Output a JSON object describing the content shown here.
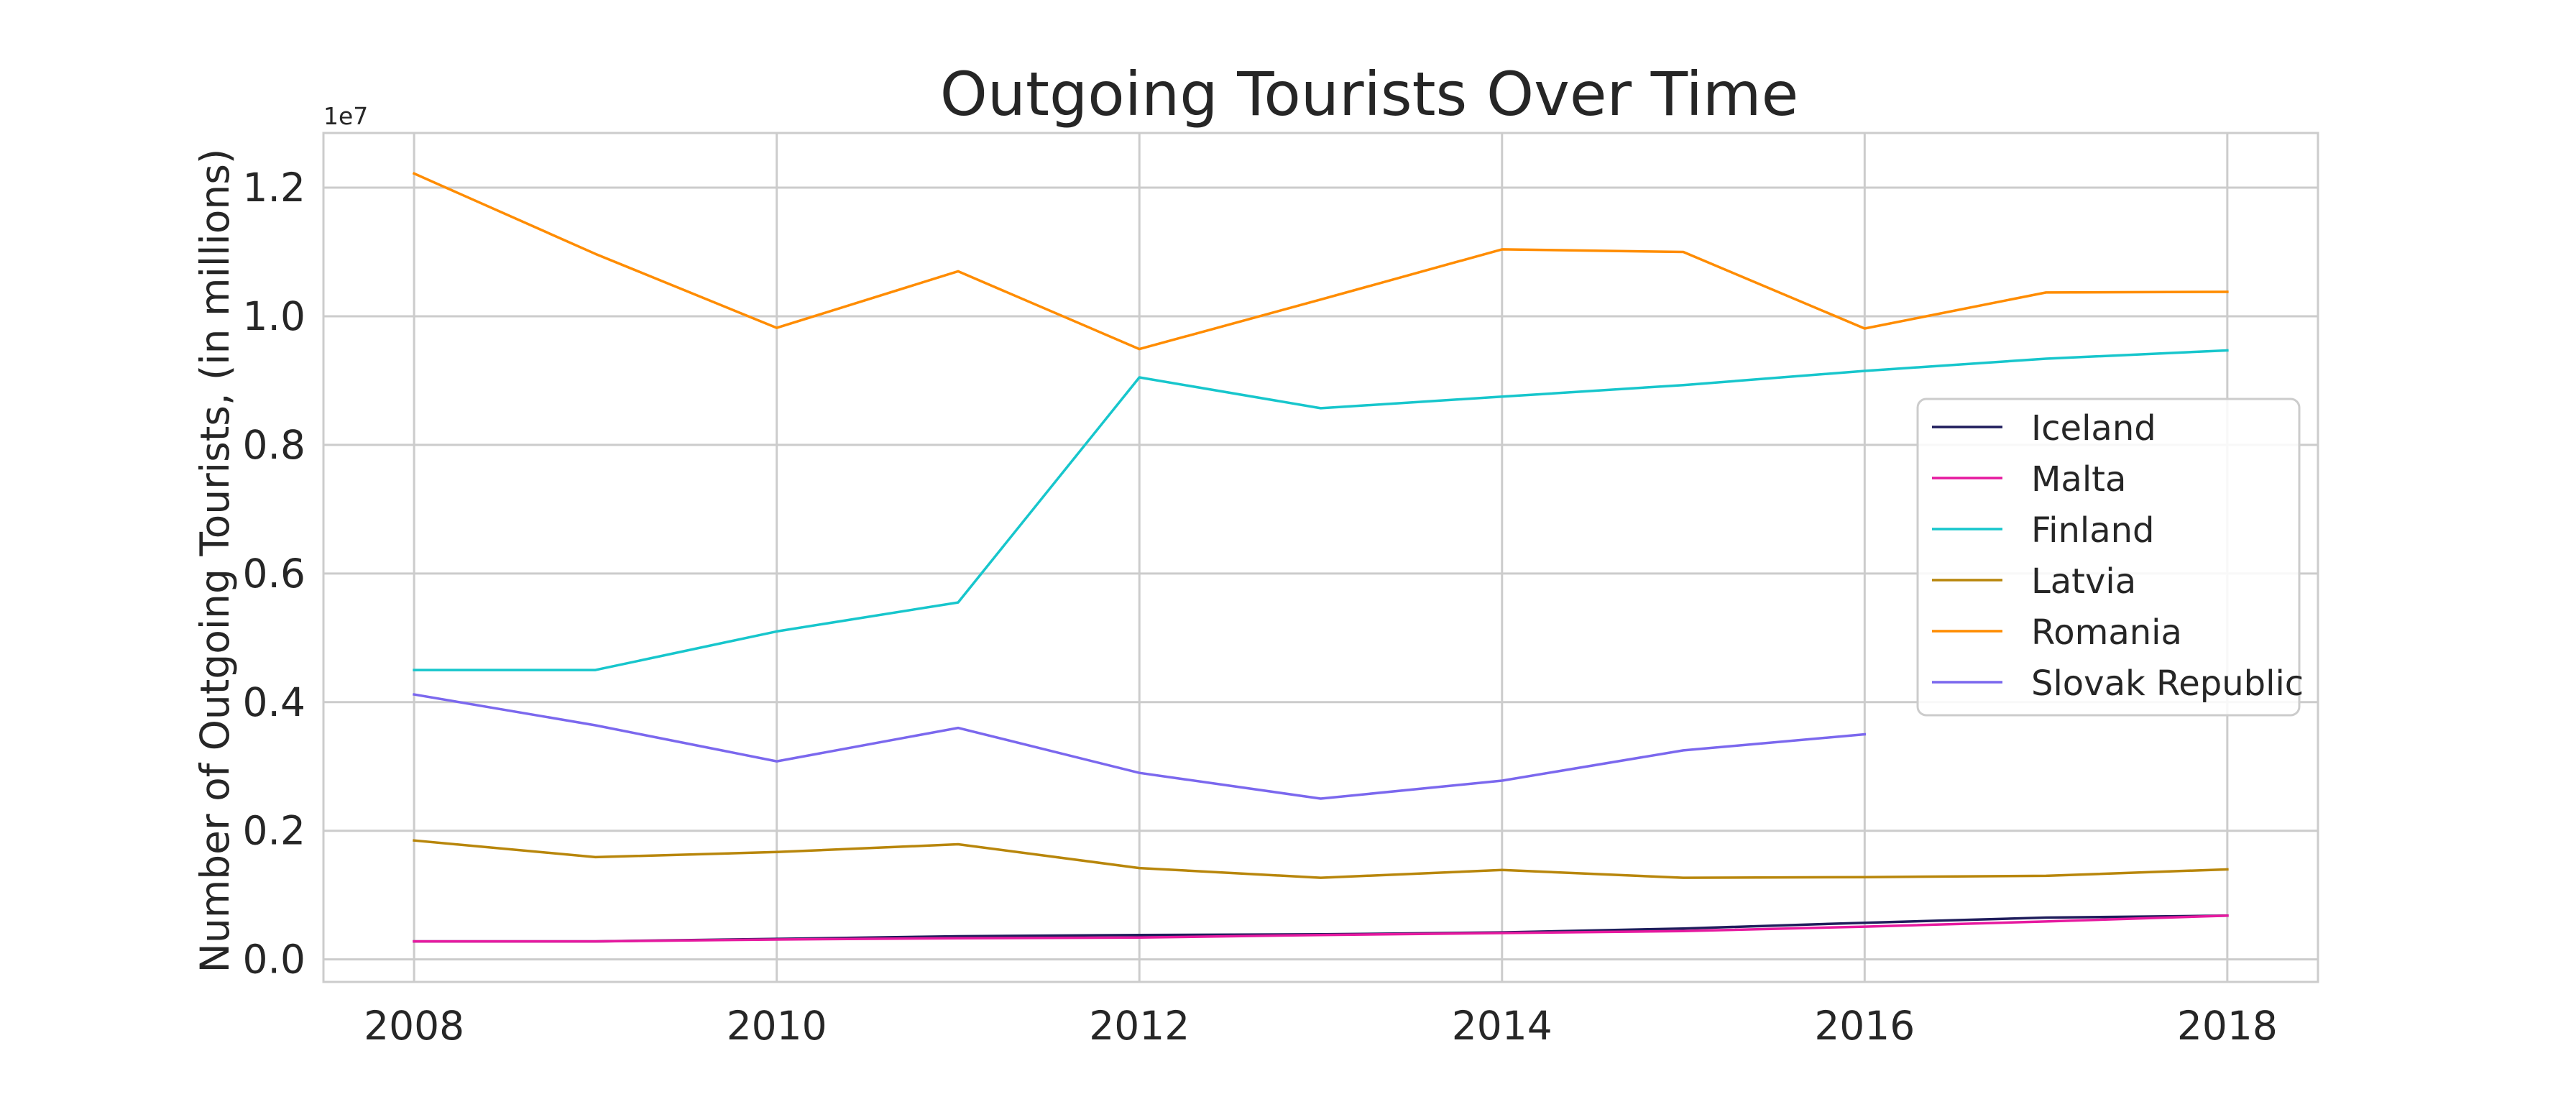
{
  "chart_data": {
    "type": "line",
    "title": "Outgoing Tourists Over Time",
    "xlabel": "",
    "ylabel": "Number of Outgoing Tourists, (in millions)",
    "y_offset_label": "1e7",
    "x": [
      2008,
      2009,
      2010,
      2011,
      2012,
      2013,
      2014,
      2015,
      2016,
      2017,
      2018
    ],
    "xlim": [
      2007.5,
      2018.5
    ],
    "ylim": [
      -0.035,
      1.285
    ],
    "x_ticks": [
      2008,
      2010,
      2012,
      2014,
      2016,
      2018
    ],
    "x_tick_labels": [
      "2008",
      "2010",
      "2012",
      "2014",
      "2016",
      "2018"
    ],
    "y_ticks": [
      0.0,
      0.2,
      0.4,
      0.6,
      0.8,
      1.0,
      1.2
    ],
    "y_tick_labels": [
      "0.0",
      "0.2",
      "0.4",
      "0.6",
      "0.8",
      "1.0",
      "1.2"
    ],
    "grid": true,
    "legend_position": "right",
    "series": [
      {
        "name": "Iceland",
        "color": "#1f1d5c",
        "values": [
          0.028,
          0.028,
          0.032,
          0.036,
          0.038,
          0.039,
          0.042,
          0.048,
          0.057,
          0.065,
          0.068
        ]
      },
      {
        "name": "Malta",
        "color": "#e6199f",
        "values": [
          0.028,
          0.028,
          0.031,
          0.033,
          0.034,
          0.038,
          0.041,
          0.044,
          0.051,
          0.059,
          0.068
        ]
      },
      {
        "name": "Finland",
        "color": "#17c6cc",
        "values": [
          0.45,
          0.45,
          0.51,
          0.555,
          0.905,
          0.857,
          0.875,
          0.893,
          0.915,
          0.934,
          0.947
        ]
      },
      {
        "name": "Latvia",
        "color": "#b8860b",
        "values": [
          0.185,
          0.159,
          0.167,
          0.179,
          0.142,
          0.127,
          0.139,
          0.127,
          0.128,
          0.13,
          0.14
        ]
      },
      {
        "name": "Romania",
        "color": "#ff8c00",
        "values": [
          1.222,
          1.097,
          0.982,
          1.07,
          0.949,
          1.026,
          1.104,
          1.1,
          0.981,
          1.037,
          1.038
        ]
      },
      {
        "name": "Slovak Republic",
        "color": "#7b68ee",
        "values": [
          0.412,
          0.364,
          0.308,
          0.36,
          0.29,
          0.25,
          0.278,
          0.325,
          0.35,
          null,
          null
        ]
      }
    ]
  }
}
